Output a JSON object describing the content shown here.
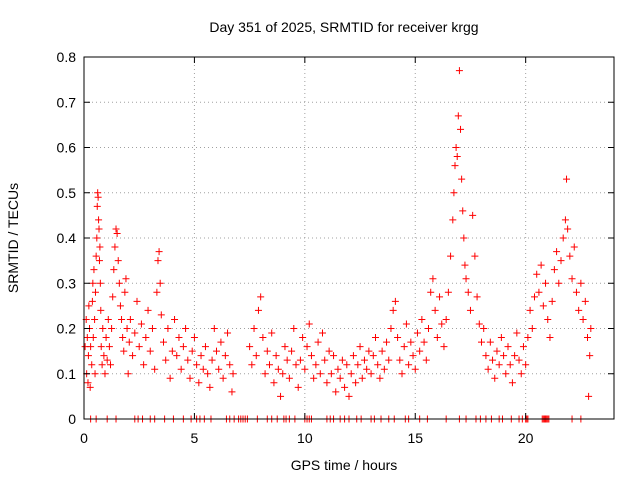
{
  "chart_data": {
    "type": "scatter",
    "title": "Day 351 of 2025, SRMTID for receiver krgg",
    "xlabel": "GPS time / hours",
    "ylabel": "SRMTID / TECUs",
    "xlim": [
      0,
      24
    ],
    "ylim": [
      0,
      0.8
    ],
    "xticks": [
      0,
      5,
      10,
      15,
      20
    ],
    "yticks": [
      0,
      0.1,
      0.2,
      0.3,
      0.4,
      0.5,
      0.6,
      0.7,
      0.8
    ],
    "grid": true,
    "marker": "+",
    "color": "#ff0000",
    "series": [
      {
        "name": "SRMTID",
        "points": [
          [
            0.05,
            0.16
          ],
          [
            0.1,
            0.22
          ],
          [
            0.12,
            0.1
          ],
          [
            0.15,
            0.18
          ],
          [
            0.18,
            0.08
          ],
          [
            0.2,
            0.14
          ],
          [
            0.22,
            0.25
          ],
          [
            0.25,
            0.2
          ],
          [
            0.28,
            0.07
          ],
          [
            0.3,
            0.16
          ],
          [
            0.35,
            0.12
          ],
          [
            0.38,
            0.26
          ],
          [
            0.4,
            0.3
          ],
          [
            0.42,
            0.18
          ],
          [
            0.45,
            0.33
          ],
          [
            0.48,
            0.22
          ],
          [
            0.5,
            0.1
          ],
          [
            0.52,
            0.28
          ],
          [
            0.55,
            0.36
          ],
          [
            0.58,
            0.4
          ],
          [
            0.6,
            0.47
          ],
          [
            0.62,
            0.5
          ],
          [
            0.64,
            0.49
          ],
          [
            0.66,
            0.44
          ],
          [
            0.68,
            0.42
          ],
          [
            0.7,
            0.35
          ],
          [
            0.72,
            0.38
          ],
          [
            0.74,
            0.3
          ],
          [
            0.76,
            0.24
          ],
          [
            0.78,
            0.16
          ],
          [
            0.82,
            0.12
          ],
          [
            0.85,
            0.2
          ],
          [
            0.9,
            0.14
          ],
          [
            0.95,
            0.1
          ],
          [
            1.0,
            0.18
          ],
          [
            1.05,
            0.13
          ],
          [
            1.1,
            0.22
          ],
          [
            1.15,
            0.16
          ],
          [
            1.2,
            0.12
          ],
          [
            1.25,
            0.2
          ],
          [
            1.3,
            0.27
          ],
          [
            1.35,
            0.33
          ],
          [
            1.4,
            0.38
          ],
          [
            1.45,
            0.42
          ],
          [
            1.5,
            0.41
          ],
          [
            1.55,
            0.35
          ],
          [
            1.6,
            0.3
          ],
          [
            1.65,
            0.25
          ],
          [
            1.7,
            0.22
          ],
          [
            1.75,
            0.18
          ],
          [
            1.8,
            0.15
          ],
          [
            1.85,
            0.28
          ],
          [
            1.9,
            0.31
          ],
          [
            1.95,
            0.2
          ],
          [
            2.0,
            0.1
          ],
          [
            2.05,
            0.17
          ],
          [
            2.1,
            0.22
          ],
          [
            2.2,
            0.14
          ],
          [
            2.3,
            0.19
          ],
          [
            2.4,
            0.26
          ],
          [
            2.5,
            0.16
          ],
          [
            2.6,
            0.21
          ],
          [
            2.7,
            0.12
          ],
          [
            2.8,
            0.18
          ],
          [
            2.9,
            0.24
          ],
          [
            3.0,
            0.15
          ],
          [
            3.1,
            0.2
          ],
          [
            3.2,
            0.11
          ],
          [
            3.3,
            0.28
          ],
          [
            3.35,
            0.35
          ],
          [
            3.4,
            0.37
          ],
          [
            3.45,
            0.3
          ],
          [
            3.5,
            0.23
          ],
          [
            3.6,
            0.17
          ],
          [
            3.7,
            0.13
          ],
          [
            3.8,
            0.2
          ],
          [
            3.9,
            0.09
          ],
          [
            4.0,
            0.15
          ],
          [
            4.1,
            0.22
          ],
          [
            4.2,
            0.14
          ],
          [
            4.3,
            0.18
          ],
          [
            4.4,
            0.11
          ],
          [
            4.5,
            0.16
          ],
          [
            4.6,
            0.2
          ],
          [
            4.7,
            0.13
          ],
          [
            4.8,
            0.09
          ],
          [
            4.9,
            0.15
          ],
          [
            5.0,
            0.18
          ],
          [
            5.1,
            0.12
          ],
          [
            5.2,
            0.08
          ],
          [
            5.3,
            0.14
          ],
          [
            5.4,
            0.11
          ],
          [
            5.5,
            0.16
          ],
          [
            5.6,
            0.1
          ],
          [
            5.7,
            0.07
          ],
          [
            5.8,
            0.13
          ],
          [
            5.9,
            0.2
          ],
          [
            6.0,
            0.15
          ],
          [
            6.1,
            0.11
          ],
          [
            6.2,
            0.17
          ],
          [
            6.3,
            0.09
          ],
          [
            6.4,
            0.14
          ],
          [
            6.5,
            0.19
          ],
          [
            6.6,
            0.12
          ],
          [
            6.7,
            0.06
          ],
          [
            6.75,
            0.1
          ],
          [
            7.5,
            0.16
          ],
          [
            7.6,
            0.12
          ],
          [
            7.7,
            0.2
          ],
          [
            7.8,
            0.14
          ],
          [
            7.9,
            0.24
          ],
          [
            8.0,
            0.27
          ],
          [
            8.1,
            0.18
          ],
          [
            8.2,
            0.1
          ],
          [
            8.3,
            0.15
          ],
          [
            8.4,
            0.12
          ],
          [
            8.5,
            0.19
          ],
          [
            8.6,
            0.08
          ],
          [
            8.7,
            0.14
          ],
          [
            8.8,
            0.11
          ],
          [
            8.9,
            0.05
          ],
          [
            9.0,
            0.1
          ],
          [
            9.1,
            0.16
          ],
          [
            9.2,
            0.13
          ],
          [
            9.3,
            0.09
          ],
          [
            9.4,
            0.15
          ],
          [
            9.5,
            0.2
          ],
          [
            9.6,
            0.12
          ],
          [
            9.7,
            0.07
          ],
          [
            9.8,
            0.13
          ],
          [
            9.9,
            0.18
          ],
          [
            10.0,
            0.11
          ],
          [
            10.1,
            0.16
          ],
          [
            10.2,
            0.21
          ],
          [
            10.3,
            0.14
          ],
          [
            10.4,
            0.09
          ],
          [
            10.5,
            0.12
          ],
          [
            10.6,
            0.17
          ],
          [
            10.7,
            0.1
          ],
          [
            10.8,
            0.19
          ],
          [
            10.9,
            0.13
          ],
          [
            11.0,
            0.08
          ],
          [
            11.1,
            0.15
          ],
          [
            11.2,
            0.1
          ],
          [
            11.3,
            0.14
          ],
          [
            11.4,
            0.06
          ],
          [
            11.5,
            0.11
          ],
          [
            11.6,
            0.09
          ],
          [
            11.7,
            0.13
          ],
          [
            11.8,
            0.07
          ],
          [
            11.9,
            0.12
          ],
          [
            12.0,
            0.05
          ],
          [
            12.1,
            0.1
          ],
          [
            12.2,
            0.14
          ],
          [
            12.3,
            0.08
          ],
          [
            12.4,
            0.12
          ],
          [
            12.5,
            0.16
          ],
          [
            12.6,
            0.09
          ],
          [
            12.7,
            0.13
          ],
          [
            12.8,
            0.11
          ],
          [
            12.9,
            0.15
          ],
          [
            13.0,
            0.1
          ],
          [
            13.1,
            0.14
          ],
          [
            13.2,
            0.18
          ],
          [
            13.3,
            0.12
          ],
          [
            13.4,
            0.09
          ],
          [
            13.5,
            0.15
          ],
          [
            13.6,
            0.11
          ],
          [
            13.7,
            0.17
          ],
          [
            13.8,
            0.13
          ],
          [
            13.9,
            0.2
          ],
          [
            14.0,
            0.24
          ],
          [
            14.1,
            0.26
          ],
          [
            14.2,
            0.18
          ],
          [
            14.3,
            0.13
          ],
          [
            14.4,
            0.1
          ],
          [
            14.5,
            0.16
          ],
          [
            14.6,
            0.21
          ],
          [
            14.7,
            0.12
          ],
          [
            14.8,
            0.17
          ],
          [
            14.9,
            0.14
          ],
          [
            15.0,
            0.11
          ],
          [
            15.1,
            0.19
          ],
          [
            15.2,
            0.15
          ],
          [
            15.3,
            0.22
          ],
          [
            15.4,
            0.17
          ],
          [
            15.5,
            0.13
          ],
          [
            15.6,
            0.2
          ],
          [
            15.7,
            0.28
          ],
          [
            15.8,
            0.31
          ],
          [
            15.9,
            0.24
          ],
          [
            16.0,
            0.18
          ],
          [
            16.1,
            0.27
          ],
          [
            16.2,
            0.21
          ],
          [
            16.3,
            0.16
          ],
          [
            16.4,
            0.22
          ],
          [
            16.5,
            0.28
          ],
          [
            16.6,
            0.36
          ],
          [
            16.7,
            0.44
          ],
          [
            16.75,
            0.5
          ],
          [
            16.8,
            0.56
          ],
          [
            16.85,
            0.6
          ],
          [
            16.9,
            0.58
          ],
          [
            16.95,
            0.67
          ],
          [
            17.0,
            0.77
          ],
          [
            17.05,
            0.64
          ],
          [
            17.1,
            0.53
          ],
          [
            17.15,
            0.46
          ],
          [
            17.2,
            0.4
          ],
          [
            17.25,
            0.34
          ],
          [
            17.3,
            0.31
          ],
          [
            17.4,
            0.28
          ],
          [
            17.5,
            0.24
          ],
          [
            17.6,
            0.45
          ],
          [
            17.7,
            0.36
          ],
          [
            17.8,
            0.27
          ],
          [
            17.9,
            0.21
          ],
          [
            18.0,
            0.17
          ],
          [
            18.1,
            0.2
          ],
          [
            18.2,
            0.14
          ],
          [
            18.3,
            0.11
          ],
          [
            18.4,
            0.17
          ],
          [
            18.5,
            0.13
          ],
          [
            18.6,
            0.09
          ],
          [
            18.7,
            0.15
          ],
          [
            18.8,
            0.12
          ],
          [
            18.9,
            0.18
          ],
          [
            19.0,
            0.14
          ],
          [
            19.1,
            0.1
          ],
          [
            19.2,
            0.16
          ],
          [
            19.3,
            0.12
          ],
          [
            19.4,
            0.08
          ],
          [
            19.5,
            0.14
          ],
          [
            19.6,
            0.19
          ],
          [
            19.7,
            0.13
          ],
          [
            19.8,
            0.1
          ],
          [
            19.9,
            0.16
          ],
          [
            20.0,
            0.12
          ],
          [
            20.1,
            0.18
          ],
          [
            20.2,
            0.24
          ],
          [
            20.3,
            0.2
          ],
          [
            20.4,
            0.27
          ],
          [
            20.5,
            0.32
          ],
          [
            20.6,
            0.28
          ],
          [
            20.7,
            0.34
          ],
          [
            20.8,
            0.25
          ],
          [
            20.9,
            0.3
          ],
          [
            21.0,
            0.22
          ],
          [
            21.1,
            0.18
          ],
          [
            21.2,
            0.26
          ],
          [
            21.3,
            0.33
          ],
          [
            21.4,
            0.37
          ],
          [
            21.5,
            0.3
          ],
          [
            21.6,
            0.35
          ],
          [
            21.7,
            0.4
          ],
          [
            21.8,
            0.44
          ],
          [
            21.85,
            0.53
          ],
          [
            21.9,
            0.42
          ],
          [
            22.0,
            0.36
          ],
          [
            22.1,
            0.31
          ],
          [
            22.2,
            0.38
          ],
          [
            22.3,
            0.28
          ],
          [
            22.4,
            0.24
          ],
          [
            22.5,
            0.3
          ],
          [
            22.6,
            0.22
          ],
          [
            22.7,
            0.26
          ],
          [
            22.8,
            0.18
          ],
          [
            22.85,
            0.05
          ],
          [
            22.9,
            0.14
          ],
          [
            22.95,
            0.2
          ]
        ]
      }
    ],
    "zero_points_x": [
      0.3,
      0.55,
      1.05,
      1.45,
      2.3,
      2.45,
      2.65,
      3.0,
      3.2,
      3.65,
      4.05,
      4.5,
      4.85,
      5.1,
      5.25,
      5.45,
      5.75,
      6.45,
      6.6,
      6.8,
      7.0,
      7.1,
      7.2,
      7.3,
      7.4,
      7.85,
      8.3,
      8.5,
      8.75,
      9.05,
      9.15,
      9.3,
      9.55,
      10.0,
      10.1,
      10.2,
      10.3,
      11.0,
      11.15,
      11.3,
      11.6,
      11.8,
      12.0,
      12.35,
      12.55,
      13.0,
      13.15,
      13.45,
      13.8,
      14.05,
      14.55,
      14.7,
      15.2,
      15.55,
      16.4,
      17.0,
      17.3,
      17.75,
      17.95,
      18.2,
      18.45,
      18.8,
      18.95,
      19.35,
      19.7,
      19.85,
      20.0,
      20.05,
      20.1,
      20.75,
      20.8,
      20.85,
      20.9,
      20.95,
      21.0,
      21.05,
      22.1,
      22.5
    ]
  }
}
